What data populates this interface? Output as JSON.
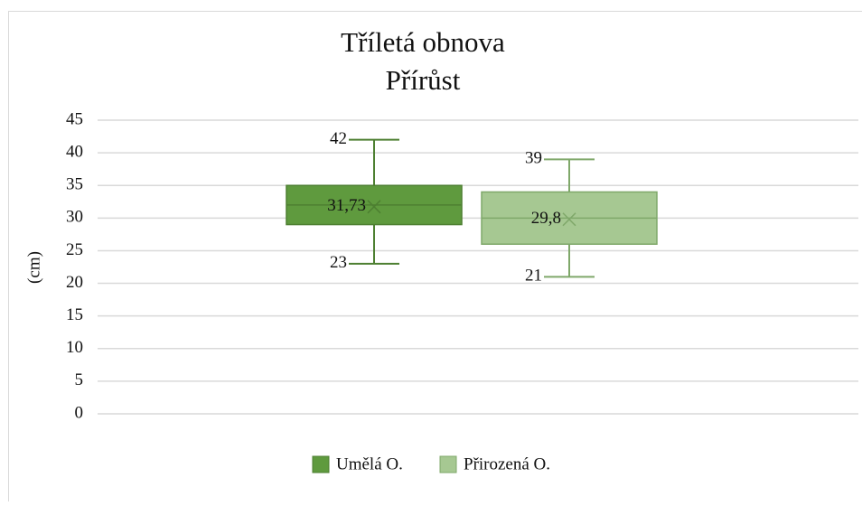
{
  "chart_data": {
    "type": "box",
    "title": "Tříletá obnova",
    "subtitle": "Přírůst",
    "y_label": "(cm)",
    "ylim": [
      0,
      45
    ],
    "yticks": [
      0,
      5,
      10,
      15,
      20,
      25,
      30,
      35,
      40,
      45
    ],
    "grid": true,
    "legend": "bottom",
    "series": [
      {
        "name": "Umělá O.",
        "color": "#5f9a3e",
        "stroke": "#4d7f31",
        "min": 23,
        "q1": 29,
        "median": 32,
        "q3": 35,
        "max": 42,
        "mean": 31.73,
        "mean_label": "31,73"
      },
      {
        "name": "Přirozená O.",
        "color": "#a6c892",
        "stroke": "#7fa86a",
        "min": 21,
        "q1": 26,
        "median": 30,
        "q3": 34,
        "max": 39,
        "mean": 29.8,
        "mean_label": "29,8"
      }
    ]
  }
}
